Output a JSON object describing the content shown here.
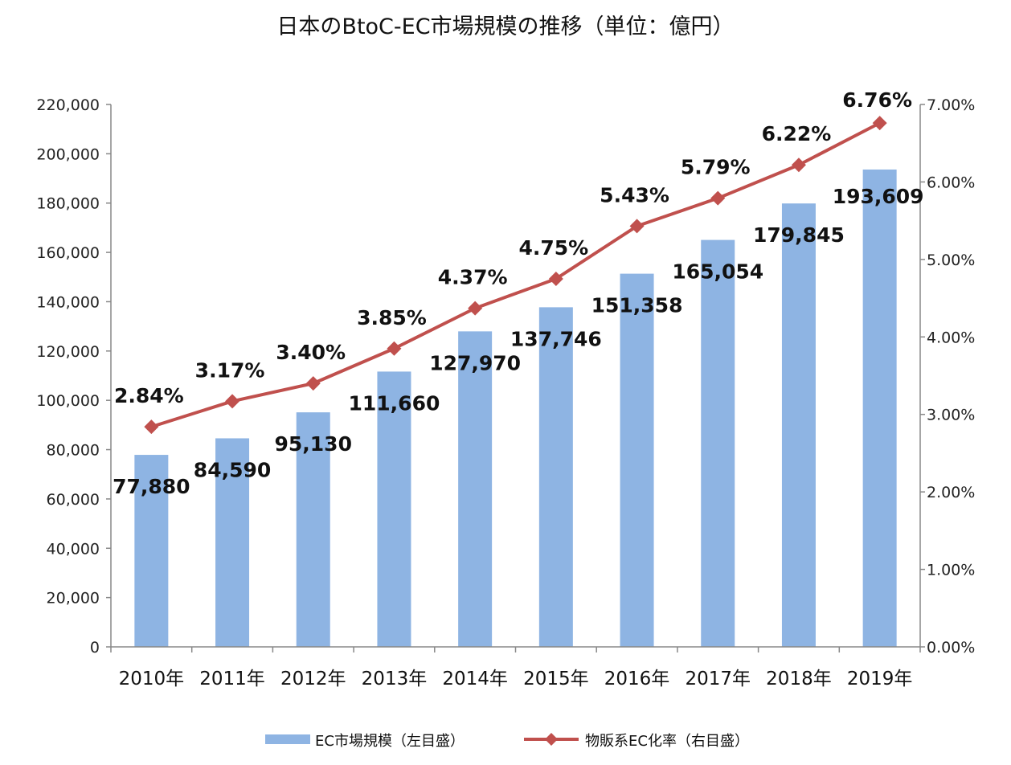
{
  "chart_data": {
    "type": "bar",
    "title": "日本のBtoC-EC市場規模の推移（単位：億円）",
    "categories": [
      "2010年",
      "2011年",
      "2012年",
      "2013年",
      "2014年",
      "2015年",
      "2016年",
      "2017年",
      "2018年",
      "2019年"
    ],
    "series": [
      {
        "name": "EC市場規模（左目盛）",
        "type": "bar",
        "axis": "left",
        "color": "#8EB4E3",
        "values": [
          77880,
          84590,
          95130,
          111660,
          127970,
          137746,
          151358,
          165054,
          179845,
          193609
        ],
        "labels": [
          "77,880",
          "84,590",
          "95,130",
          "111,660",
          "127,970",
          "137,746",
          "151,358",
          "165,054",
          "179,845",
          "193,609"
        ]
      },
      {
        "name": "物販系EC化率（右目盛）",
        "type": "line",
        "axis": "right",
        "color": "#C0504D",
        "values": [
          2.84,
          3.17,
          3.4,
          3.85,
          4.37,
          4.75,
          5.43,
          5.79,
          6.22,
          6.76
        ],
        "labels": [
          "2.84%",
          "3.17%",
          "3.40%",
          "3.85%",
          "4.37%",
          "4.75%",
          "5.43%",
          "5.79%",
          "6.22%",
          "6.76%"
        ]
      }
    ],
    "y_left": {
      "lim": [
        0,
        220000
      ],
      "ticks": [
        "0",
        "20,000",
        "40,000",
        "60,000",
        "80,000",
        "100,000",
        "120,000",
        "140,000",
        "160,000",
        "180,000",
        "200,000",
        "220,000"
      ]
    },
    "y_right": {
      "lim": [
        0,
        7
      ],
      "ticks": [
        "0.00%",
        "1.00%",
        "2.00%",
        "3.00%",
        "4.00%",
        "5.00%",
        "6.00%",
        "7.00%"
      ]
    },
    "grid": false,
    "legend": "bottom",
    "highlight_colors": {
      "last_bar_label": "#1F3864",
      "last_rate_label": "#C00000"
    }
  }
}
